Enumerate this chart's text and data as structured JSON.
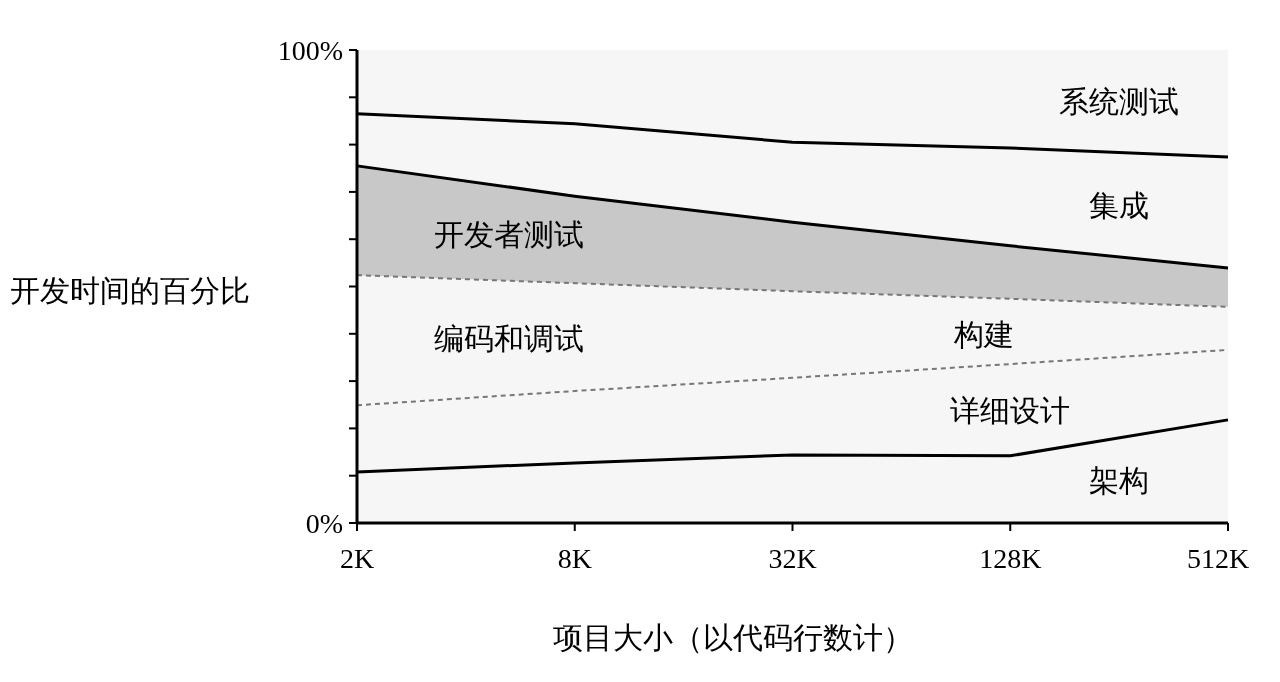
{
  "chart_data": {
    "type": "area",
    "stacked": true,
    "categories": [
      "2K",
      "8K",
      "32K",
      "128K",
      "512K"
    ],
    "xlabel": "项目大小（以代码行数计）",
    "ylabel": "开发时间的百分比",
    "ylim": [
      0,
      100
    ],
    "yticks": [
      {
        "value": 0,
        "label": "0%"
      },
      {
        "value": 10,
        "label": null
      },
      {
        "value": 20,
        "label": null
      },
      {
        "value": 30,
        "label": null
      },
      {
        "value": 40,
        "label": null
      },
      {
        "value": 50,
        "label": null
      },
      {
        "value": 60,
        "label": null
      },
      {
        "value": 70,
        "label": null
      },
      {
        "value": 80,
        "label": null
      },
      {
        "value": 90,
        "label": null
      },
      {
        "value": 100,
        "label": "100%"
      }
    ],
    "grid": false,
    "series": [
      {
        "name": "架构",
        "color": "#f6f6f6",
        "line_style": "solid",
        "values": [
          10.8,
          12.7,
          14.4,
          14.2,
          21.8
        ]
      },
      {
        "name": "详细设计",
        "color": "#f6f6f6",
        "line_style": "dashed",
        "values": [
          14.1,
          15.2,
          16.3,
          19.4,
          14.8
        ]
      },
      {
        "name": "编码和调试",
        "color": "#f6f6f6",
        "line_style": "dashed",
        "values": [
          27.5,
          22.8,
          18.3,
          13.8,
          9.1
        ]
      },
      {
        "name": "开发者测试",
        "color": "#c8c8c8",
        "line_style": "solid",
        "values": [
          23.1,
          18.4,
          14.6,
          11.2,
          8.2
        ]
      },
      {
        "name": "集成",
        "color": "#f6f6f6",
        "line_style": "solid",
        "values": [
          11.0,
          15.3,
          16.9,
          20.7,
          23.5
        ]
      },
      {
        "name": "系统测试",
        "color": "#f6f6f6",
        "line_style": "none",
        "values": [
          13.5,
          15.6,
          19.5,
          20.7,
          22.6
        ]
      }
    ],
    "annotations": [
      "构建"
    ]
  }
}
